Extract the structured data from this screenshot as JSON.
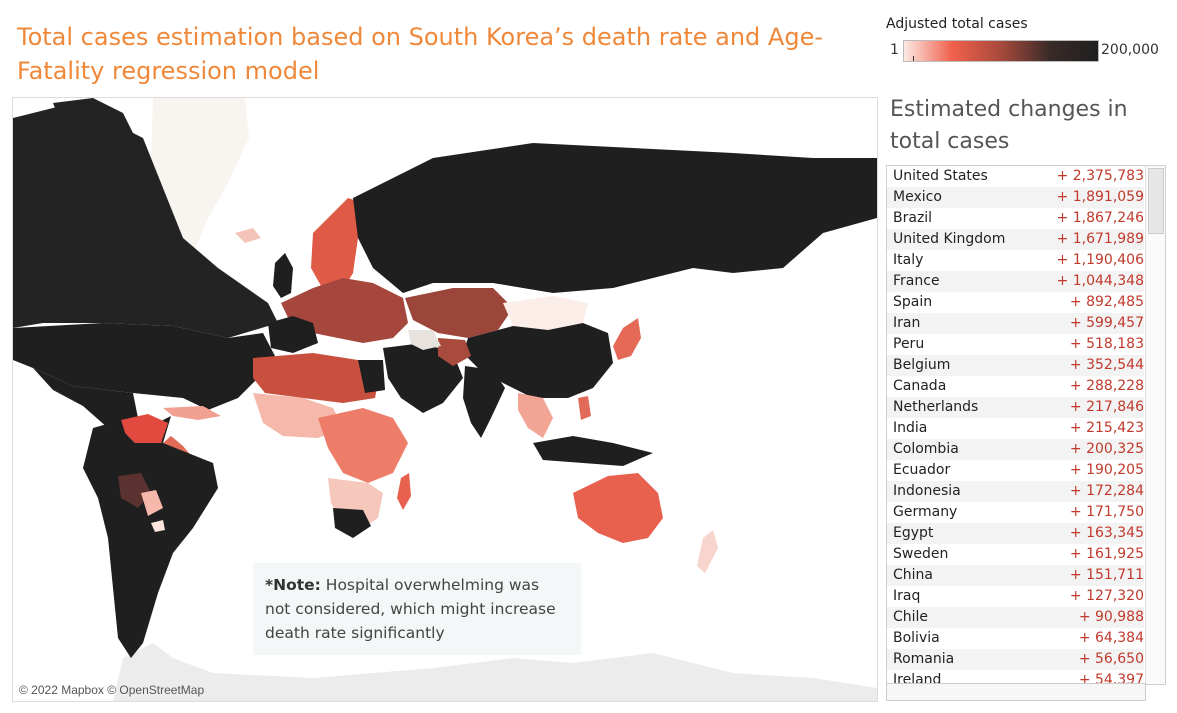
{
  "title": "Total cases estimation based on South Korea’s death rate and Age-Fatality regression model",
  "legend": {
    "title": "Adjusted total cases",
    "min_label": "1",
    "max_label": "200,000",
    "colors": [
      "#fbe9e3",
      "#f0604c",
      "#a84a3c",
      "#3a2b29",
      "#1f1f1f"
    ]
  },
  "map": {
    "attribution": "© 2022 Mapbox © OpenStreetMap",
    "note_label": "*Note:",
    "note_text": " Hospital overwhelming was not considered, which might increase death rate significantly"
  },
  "side": {
    "title": "Estimated changes in total cases",
    "rows": [
      {
        "country": "United States",
        "value": "+ 2,375,783"
      },
      {
        "country": "Mexico",
        "value": "+ 1,891,059"
      },
      {
        "country": "Brazil",
        "value": "+ 1,867,246"
      },
      {
        "country": "United Kingdom",
        "value": "+ 1,671,989"
      },
      {
        "country": "Italy",
        "value": "+ 1,190,406"
      },
      {
        "country": "France",
        "value": "+ 1,044,348"
      },
      {
        "country": "Spain",
        "value": "+ 892,485"
      },
      {
        "country": "Iran",
        "value": "+ 599,457"
      },
      {
        "country": "Peru",
        "value": "+ 518,183"
      },
      {
        "country": "Belgium",
        "value": "+ 352,544"
      },
      {
        "country": "Canada",
        "value": "+ 288,228"
      },
      {
        "country": "Netherlands",
        "value": "+ 217,846"
      },
      {
        "country": "India",
        "value": "+ 215,423"
      },
      {
        "country": "Colombia",
        "value": "+ 200,325"
      },
      {
        "country": "Ecuador",
        "value": "+ 190,205"
      },
      {
        "country": "Indonesia",
        "value": "+ 172,284"
      },
      {
        "country": "Germany",
        "value": "+ 171,750"
      },
      {
        "country": "Egypt",
        "value": "+ 163,345"
      },
      {
        "country": "Sweden",
        "value": "+ 161,925"
      },
      {
        "country": "China",
        "value": "+ 151,711"
      },
      {
        "country": "Iraq",
        "value": "+ 127,320"
      },
      {
        "country": "Chile",
        "value": "+ 90,988"
      },
      {
        "country": "Bolivia",
        "value": "+ 64,384"
      },
      {
        "country": "Romania",
        "value": "+ 56,650"
      },
      {
        "country": "Ireland",
        "value": "+ 54,397"
      }
    ]
  }
}
